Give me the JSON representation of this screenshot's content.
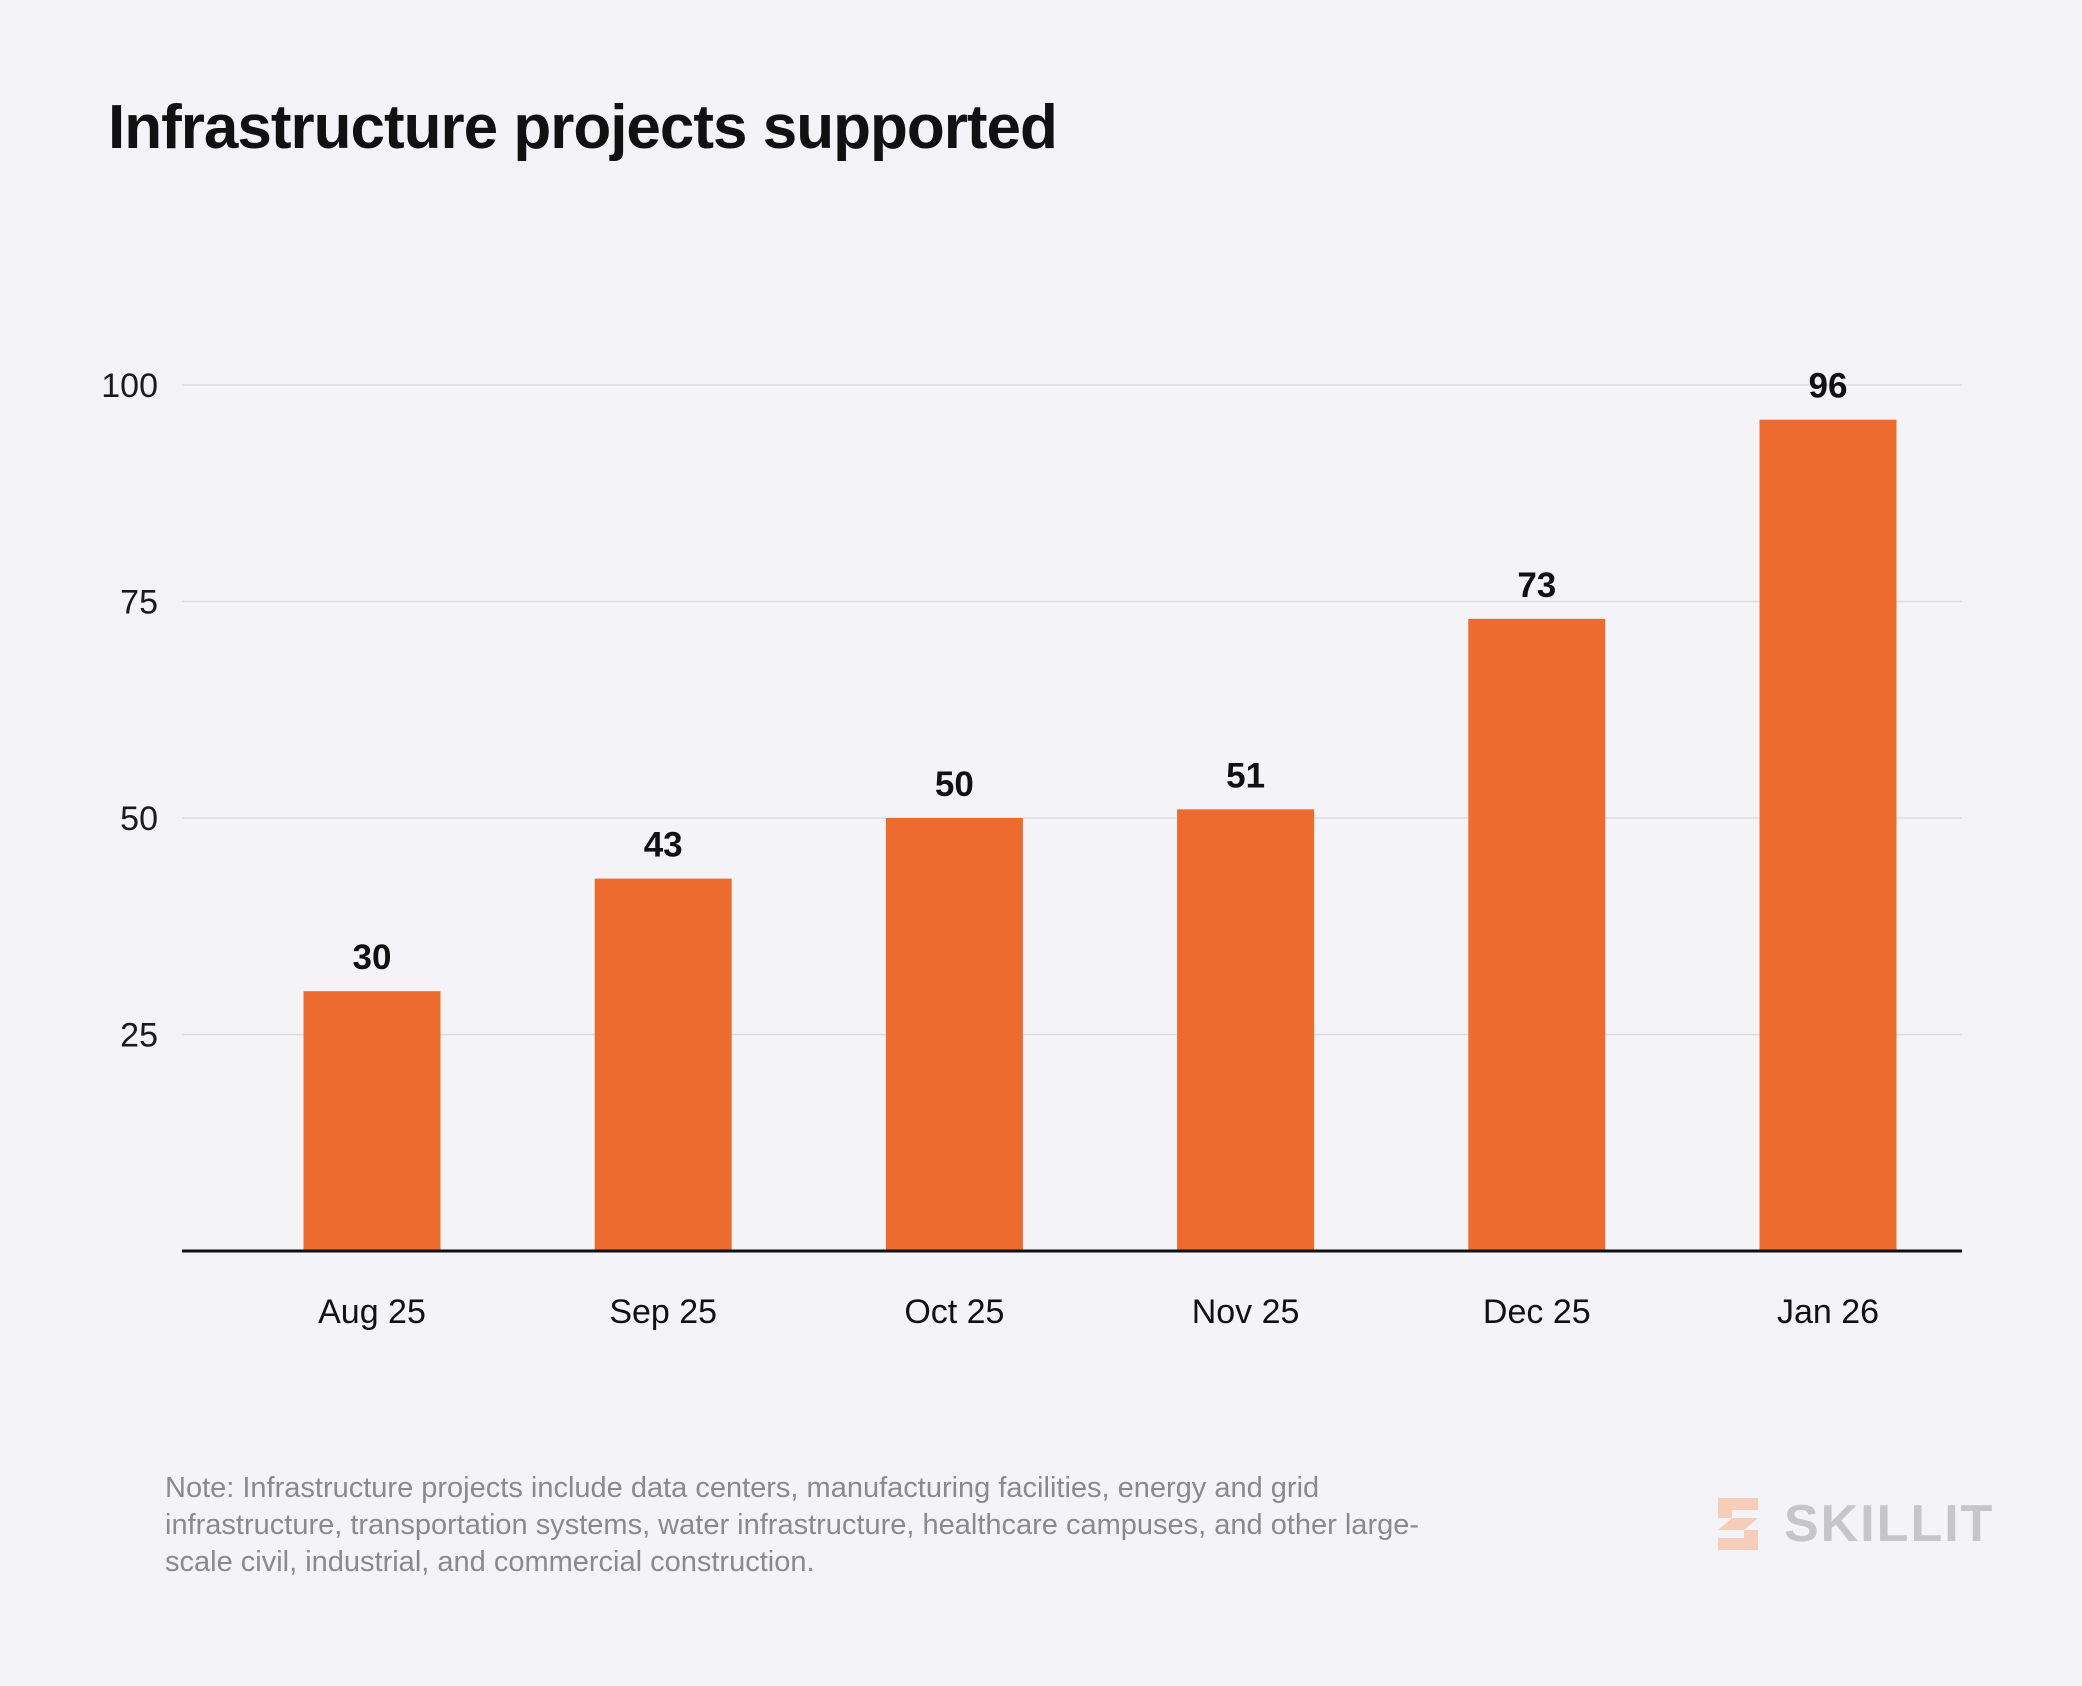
{
  "colors": {
    "background": "#f4f4f8",
    "bar": "#ee6b30",
    "grid": "#dcdce2",
    "axis": "#111111",
    "note": "#8a8a8e",
    "brand_text": "#c6c6ca",
    "brand_mark": "#f6cdb8"
  },
  "chart_data": {
    "type": "bar",
    "title": "Infrastructure projects supported",
    "xlabel": "",
    "ylabel": "",
    "categories": [
      "Aug 25",
      "Sep 25",
      "Oct 25",
      "Nov 25",
      "Dec 25",
      "Jan 26"
    ],
    "values": [
      30,
      43,
      50,
      51,
      73,
      96
    ],
    "value_labels": [
      "30",
      "43",
      "50",
      "51",
      "73",
      "96"
    ],
    "yticks": [
      25,
      50,
      75,
      100
    ],
    "ytick_labels": [
      "25",
      "50",
      "75",
      "100"
    ],
    "ylim": [
      0,
      100
    ],
    "grid": true,
    "legend": "none"
  },
  "footer": {
    "note": "Note: Infrastructure projects include data centers, manufacturing facilities, energy and grid infrastructure, transportation systems, water infrastructure, healthcare campuses, and other large-scale civil, industrial, and commercial construction.",
    "brand": "SKILLIT",
    "brand_icon": "skillit-logo-icon"
  }
}
